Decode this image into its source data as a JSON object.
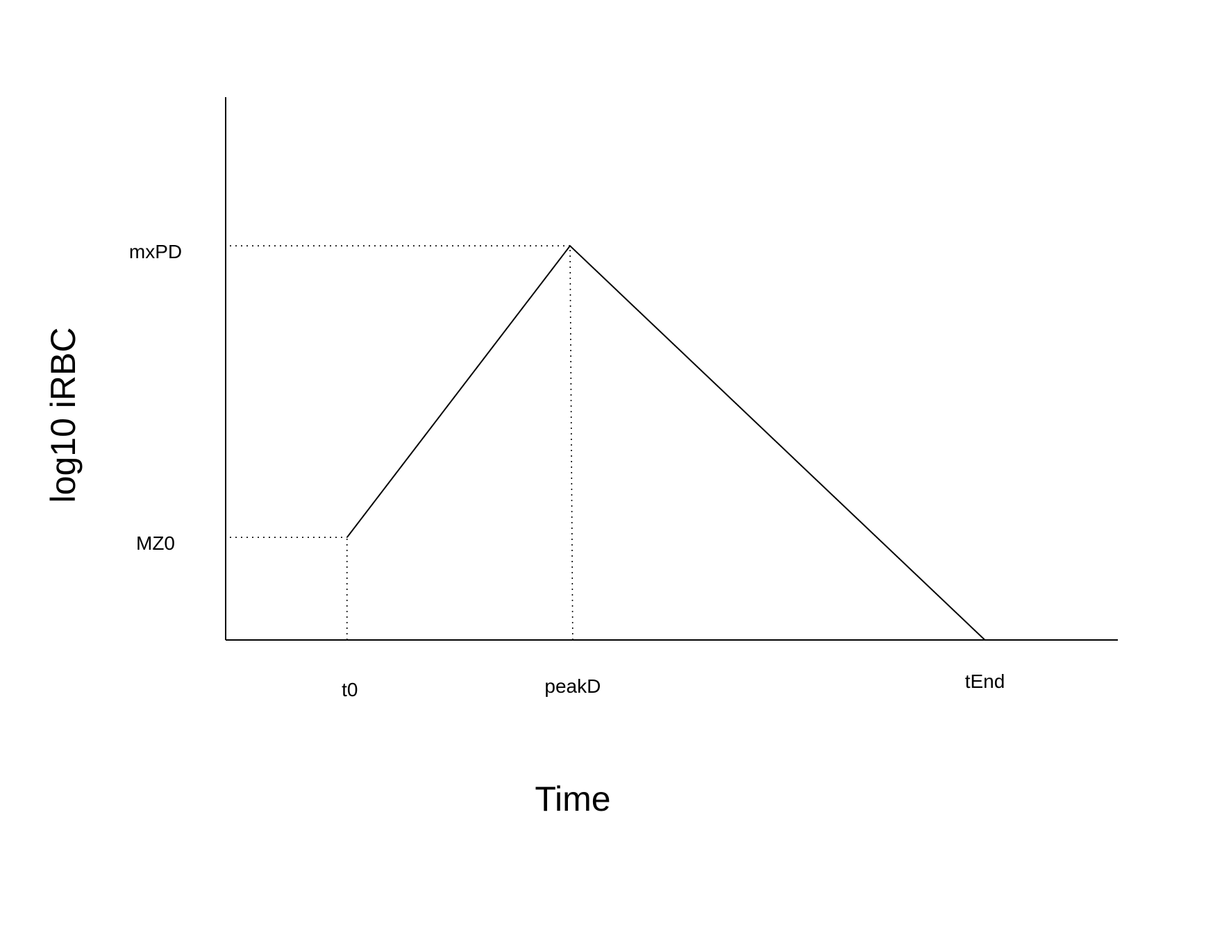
{
  "chart_data": {
    "type": "line",
    "title": "",
    "xlabel": "Time",
    "ylabel": "log10 iRBC",
    "grid": false,
    "legend": "none",
    "xlim": [
      0,
      1
    ],
    "ylim": [
      0,
      1
    ],
    "x_ticks": [
      {
        "label": "t0",
        "value": 0.136
      },
      {
        "label": "peakD",
        "value": 0.389
      },
      {
        "label": "tEnd",
        "value": 0.851
      }
    ],
    "y_ticks": [
      {
        "label": "MZ0",
        "value": 0.19
      },
      {
        "label": "mxPD",
        "value": 0.73
      }
    ],
    "series": [
      {
        "x": [
          0.136,
          0.386,
          0.851,
          1.0
        ],
        "y": [
          0.19,
          0.73,
          0.0,
          0.0
        ]
      }
    ],
    "guides": [
      {
        "from": [
          0.0,
          0.19
        ],
        "to": [
          0.136,
          0.19
        ]
      },
      {
        "from": [
          0.136,
          0.0
        ],
        "to": [
          0.136,
          0.19
        ]
      },
      {
        "from": [
          0.0,
          0.73
        ],
        "to": [
          0.386,
          0.73
        ]
      },
      {
        "from": [
          0.389,
          0.0
        ],
        "to": [
          0.386,
          0.73
        ]
      }
    ],
    "colors": {
      "line": "#000000",
      "background": "#ffffff"
    }
  }
}
